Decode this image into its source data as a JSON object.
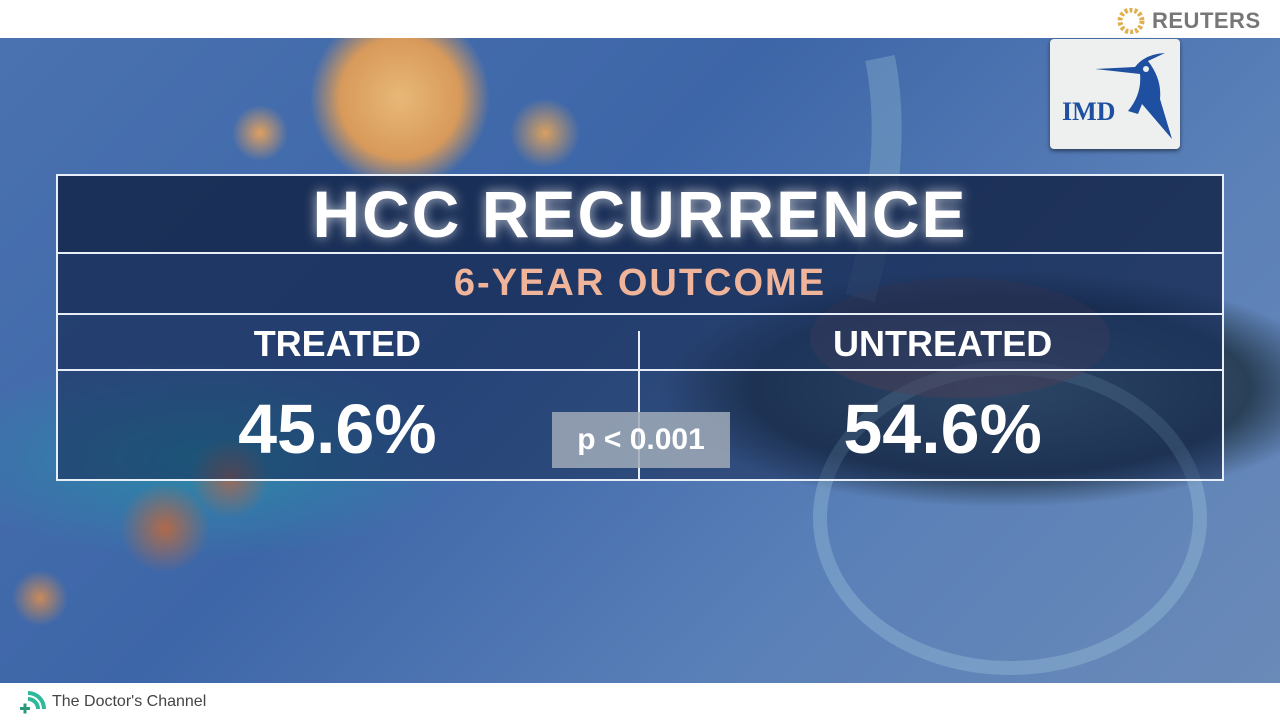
{
  "header": {
    "brand": "REUTERS"
  },
  "logo": {
    "text": "IMD"
  },
  "infographic": {
    "title": "HCC RECURRENCE",
    "subtitle": "6-YEAR OUTCOME",
    "columns": [
      "TREATED",
      "UNTREATED"
    ],
    "values": [
      "45.6%",
      "54.6%"
    ],
    "p_value": "p < 0.001"
  },
  "footer": {
    "channel": "The Doctor's Channel"
  },
  "colors": {
    "subtitle": "#f0b49a",
    "imd_blue": "#1e4fa0",
    "tdc_green": "#2fb89a"
  }
}
